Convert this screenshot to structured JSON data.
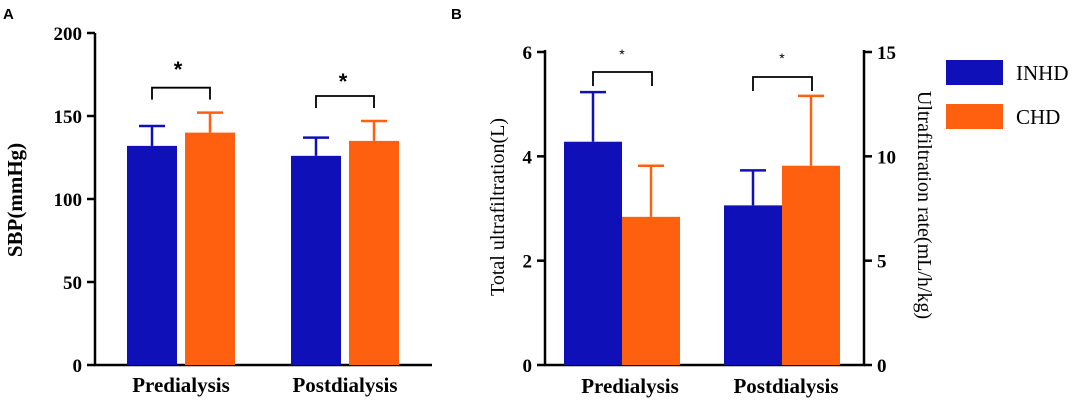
{
  "chart_data": [
    {
      "panel": "A",
      "type": "bar",
      "categories": [
        "Predialysis",
        "Postdialysis"
      ],
      "series": [
        {
          "name": "INHD",
          "values": [
            132,
            126
          ],
          "errors": [
            12,
            11
          ]
        },
        {
          "name": "CHD",
          "values": [
            140,
            135
          ],
          "errors": [
            12,
            12
          ]
        }
      ],
      "ylabel": "SBP(mmHg)",
      "ylim": [
        0,
        200
      ],
      "yticks": [
        "0",
        "50",
        "100",
        "150",
        "200"
      ],
      "significance": [
        "*",
        "*"
      ]
    },
    {
      "panel": "B",
      "type": "bar",
      "categories": [
        "Predialysis",
        "Postdialysis"
      ],
      "series": [
        {
          "name": "INHD",
          "values": [
            4.28,
            3.06
          ],
          "errors": [
            0.95,
            0.67
          ],
          "axis": "left"
        },
        {
          "name": "CHD",
          "values": [
            7.1,
            9.55
          ],
          "errors": [
            2.45,
            3.35
          ],
          "axis": "right"
        }
      ],
      "ylabel": "Total ultrafiltration(L)",
      "ylabel_right": "Ultrafiltration rate(mL/h/kg)",
      "ylim": [
        0,
        6
      ],
      "ylim_right": [
        0,
        15
      ],
      "yticks": [
        "0",
        "2",
        "4",
        "6"
      ],
      "yticks_right": [
        "0",
        "5",
        "10",
        "15"
      ],
      "significance": [
        "*",
        "*"
      ]
    }
  ],
  "legend": [
    {
      "name": "INHD",
      "color": "#1010b8"
    },
    {
      "name": "CHD",
      "color": "#ff6010"
    }
  ],
  "colors": {
    "inhd": "#1010b8",
    "chd": "#ff6010"
  }
}
